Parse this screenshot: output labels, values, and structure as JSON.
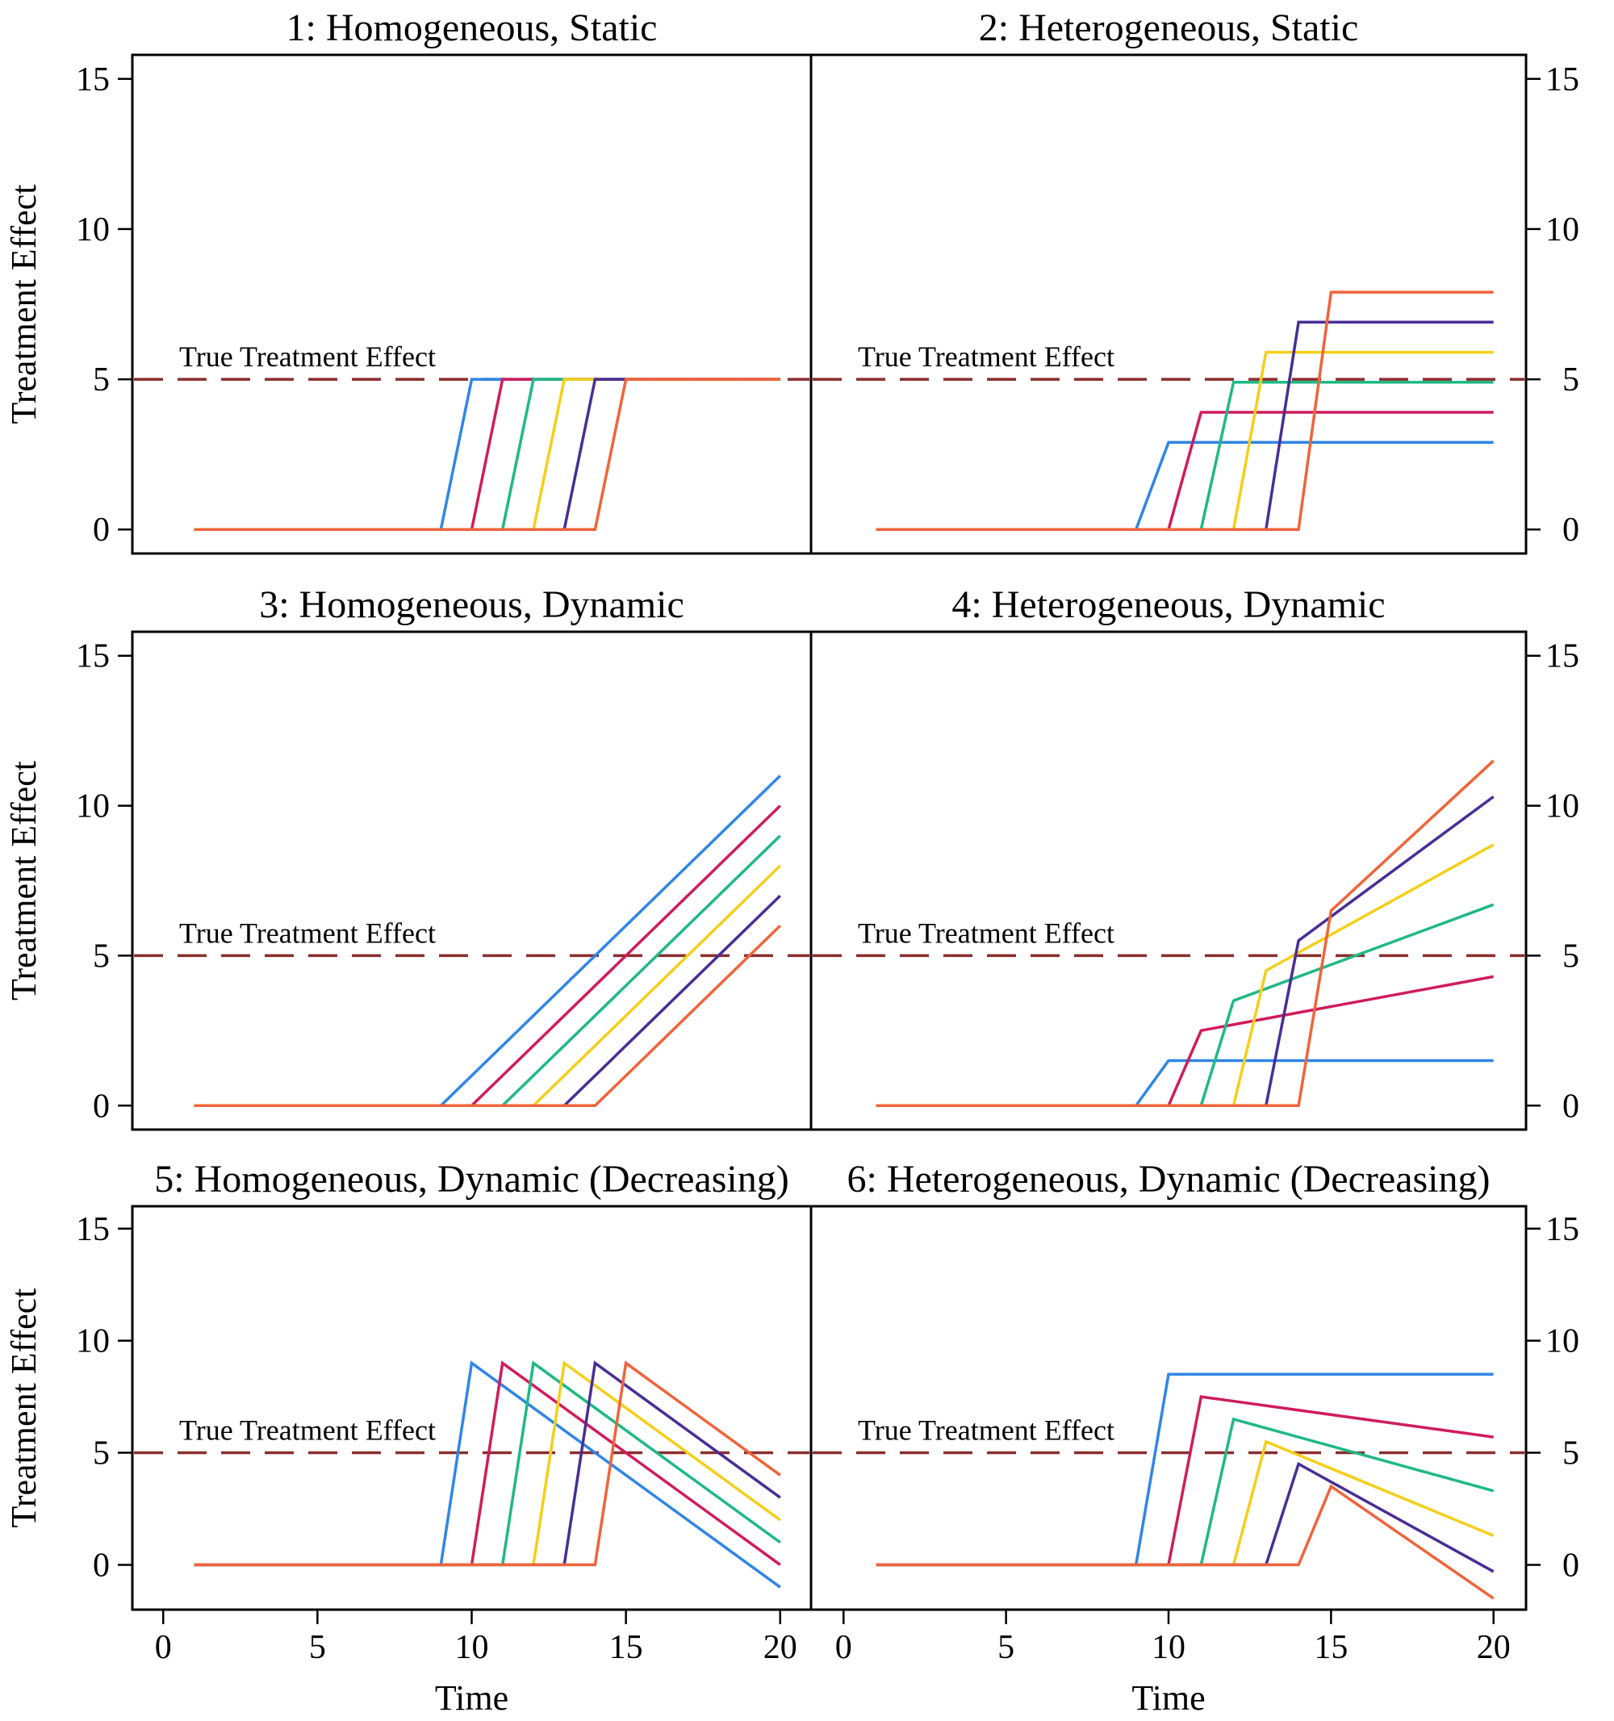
{
  "figure": {
    "ylabel": "Treatment Effect",
    "xlabel": "Time",
    "colors": [
      "#2f86e6",
      "#d01c5c",
      "#1fb984",
      "#f4cf1a",
      "#4a2d96",
      "#f0643a"
    ],
    "ref_color": "#8b2d2d"
  },
  "chart_data": [
    {
      "type": "line",
      "title": "1: Homogeneous, Static",
      "xlim": [
        -1,
        21
      ],
      "ylim": [
        -0.8,
        15.8
      ],
      "xticks": [],
      "yticks": [
        0,
        5,
        10,
        15
      ],
      "yaxis": "left",
      "reference": {
        "y": 5,
        "label": "True Treatment Effect"
      },
      "series": [
        {
          "x": [
            1,
            9,
            10,
            20
          ],
          "y": [
            0,
            0,
            5,
            5
          ]
        },
        {
          "x": [
            1,
            10,
            11,
            20
          ],
          "y": [
            0,
            0,
            5,
            5
          ]
        },
        {
          "x": [
            1,
            11,
            12,
            20
          ],
          "y": [
            0,
            0,
            5,
            5
          ]
        },
        {
          "x": [
            1,
            12,
            13,
            20
          ],
          "y": [
            0,
            0,
            5,
            5
          ]
        },
        {
          "x": [
            1,
            13,
            14,
            20
          ],
          "y": [
            0,
            0,
            5,
            5
          ]
        },
        {
          "x": [
            1,
            14,
            15,
            20
          ],
          "y": [
            0,
            0,
            5,
            5
          ]
        }
      ]
    },
    {
      "type": "line",
      "title": "2: Heterogeneous, Static",
      "xlim": [
        -1,
        21
      ],
      "ylim": [
        -0.8,
        15.8
      ],
      "xticks": [],
      "yticks": [
        0,
        5,
        10,
        15
      ],
      "yaxis": "right",
      "reference": {
        "y": 5,
        "label": "True Treatment Effect"
      },
      "series": [
        {
          "x": [
            1,
            9,
            10,
            20
          ],
          "y": [
            0,
            0,
            2.9,
            2.9
          ]
        },
        {
          "x": [
            1,
            10,
            11,
            20
          ],
          "y": [
            0,
            0,
            3.9,
            3.9
          ]
        },
        {
          "x": [
            1,
            11,
            12,
            20
          ],
          "y": [
            0,
            0,
            4.9,
            4.9
          ]
        },
        {
          "x": [
            1,
            12,
            13,
            20
          ],
          "y": [
            0,
            0,
            5.9,
            5.9
          ]
        },
        {
          "x": [
            1,
            13,
            14,
            20
          ],
          "y": [
            0,
            0,
            6.9,
            6.9
          ]
        },
        {
          "x": [
            1,
            14,
            15,
            20
          ],
          "y": [
            0,
            0,
            7.9,
            7.9
          ]
        }
      ]
    },
    {
      "type": "line",
      "title": "3: Homogeneous, Dynamic",
      "xlim": [
        -1,
        21
      ],
      "ylim": [
        -0.8,
        15.8
      ],
      "xticks": [],
      "yticks": [
        0,
        5,
        10,
        15
      ],
      "yaxis": "left",
      "reference": {
        "y": 5,
        "label": "True Treatment Effect"
      },
      "series": [
        {
          "x": [
            1,
            9,
            20
          ],
          "y": [
            0,
            0,
            11
          ]
        },
        {
          "x": [
            1,
            10,
            20
          ],
          "y": [
            0,
            0,
            10
          ]
        },
        {
          "x": [
            1,
            11,
            20
          ],
          "y": [
            0,
            0,
            9
          ]
        },
        {
          "x": [
            1,
            12,
            20
          ],
          "y": [
            0,
            0,
            8
          ]
        },
        {
          "x": [
            1,
            13,
            20
          ],
          "y": [
            0,
            0,
            7
          ]
        },
        {
          "x": [
            1,
            14,
            20
          ],
          "y": [
            0,
            0,
            6
          ]
        }
      ]
    },
    {
      "type": "line",
      "title": "4: Heterogeneous, Dynamic",
      "xlim": [
        -1,
        21
      ],
      "ylim": [
        -0.8,
        15.8
      ],
      "xticks": [],
      "yticks": [
        0,
        5,
        10,
        15
      ],
      "yaxis": "right",
      "reference": {
        "y": 5,
        "label": "True Treatment Effect"
      },
      "series": [
        {
          "x": [
            1,
            9,
            10,
            20
          ],
          "y": [
            0,
            0,
            1.5,
            1.5
          ]
        },
        {
          "x": [
            1,
            10,
            11,
            20
          ],
          "y": [
            0,
            0,
            2.5,
            4.3
          ]
        },
        {
          "x": [
            1,
            11,
            12,
            20
          ],
          "y": [
            0,
            0,
            3.5,
            6.7
          ]
        },
        {
          "x": [
            1,
            12,
            13,
            20
          ],
          "y": [
            0,
            0,
            4.5,
            8.7
          ]
        },
        {
          "x": [
            1,
            13,
            14,
            20
          ],
          "y": [
            0,
            0,
            5.5,
            10.3
          ]
        },
        {
          "x": [
            1,
            14,
            15,
            20
          ],
          "y": [
            0,
            0,
            6.5,
            11.5
          ]
        }
      ]
    },
    {
      "type": "line",
      "title": "5: Homogeneous, Dynamic (Decreasing)",
      "xlim": [
        -1,
        21
      ],
      "ylim": [
        -2,
        16
      ],
      "xticks": [
        0,
        5,
        10,
        15,
        20
      ],
      "yticks": [
        0,
        5,
        10,
        15
      ],
      "yaxis": "left",
      "xlabel": "Time",
      "reference": {
        "y": 5,
        "label": "True Treatment Effect"
      },
      "series": [
        {
          "x": [
            1,
            9,
            10,
            20
          ],
          "y": [
            0,
            0,
            9,
            -1
          ]
        },
        {
          "x": [
            1,
            10,
            11,
            20
          ],
          "y": [
            0,
            0,
            9,
            0
          ]
        },
        {
          "x": [
            1,
            11,
            12,
            20
          ],
          "y": [
            0,
            0,
            9,
            1
          ]
        },
        {
          "x": [
            1,
            12,
            13,
            20
          ],
          "y": [
            0,
            0,
            9,
            2
          ]
        },
        {
          "x": [
            1,
            13,
            14,
            20
          ],
          "y": [
            0,
            0,
            9,
            3
          ]
        },
        {
          "x": [
            1,
            14,
            15,
            20
          ],
          "y": [
            0,
            0,
            9,
            4
          ]
        }
      ]
    },
    {
      "type": "line",
      "title": "6: Heterogeneous, Dynamic (Decreasing)",
      "xlim": [
        -1,
        21
      ],
      "ylim": [
        -2,
        16
      ],
      "xticks": [
        0,
        5,
        10,
        15,
        20
      ],
      "yticks": [
        0,
        5,
        10,
        15
      ],
      "yaxis": "right",
      "xlabel": "Time",
      "reference": {
        "y": 5,
        "label": "True Treatment Effect"
      },
      "series": [
        {
          "x": [
            1,
            9,
            10,
            20
          ],
          "y": [
            0,
            0,
            8.5,
            8.5
          ]
        },
        {
          "x": [
            1,
            10,
            11,
            20
          ],
          "y": [
            0,
            0,
            7.5,
            5.7
          ]
        },
        {
          "x": [
            1,
            11,
            12,
            20
          ],
          "y": [
            0,
            0,
            6.5,
            3.3
          ]
        },
        {
          "x": [
            1,
            12,
            13,
            20
          ],
          "y": [
            0,
            0,
            5.5,
            1.3
          ]
        },
        {
          "x": [
            1,
            13,
            14,
            20
          ],
          "y": [
            0,
            0,
            4.5,
            -0.3
          ]
        },
        {
          "x": [
            1,
            14,
            15,
            20
          ],
          "y": [
            0,
            0,
            3.5,
            -1.5
          ]
        }
      ]
    }
  ]
}
